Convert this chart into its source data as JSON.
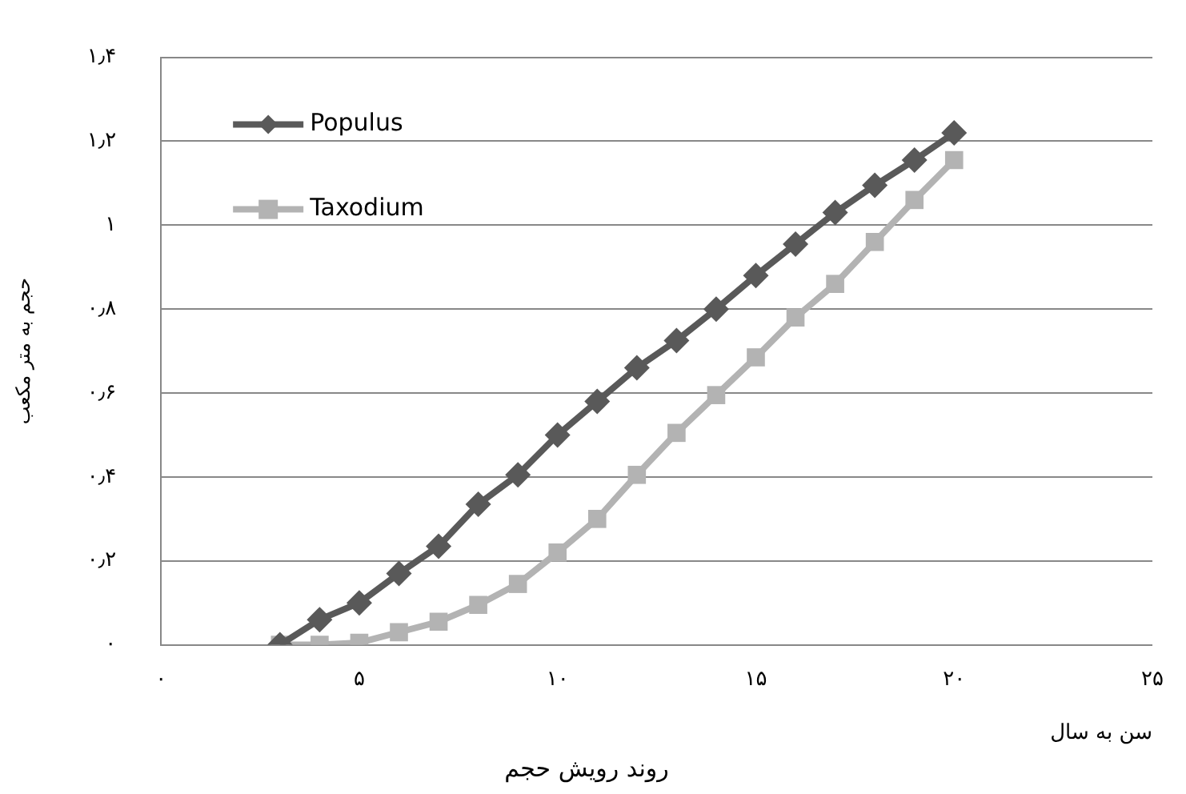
{
  "chart_data": {
    "type": "line",
    "title": "روند رویش حجم",
    "xlabel": "سن به سال",
    "ylabel": "حجم به متر مکعب",
    "x": [
      3,
      4,
      5,
      6,
      7,
      8,
      9,
      10,
      11,
      12,
      13,
      14,
      15,
      16,
      17,
      18,
      19,
      20
    ],
    "series": [
      {
        "name": "Populus",
        "color": "#595959",
        "marker": "diamond",
        "values": [
          0,
          0.06,
          0.1,
          0.17,
          0.235,
          0.335,
          0.405,
          0.5,
          0.58,
          0.66,
          0.725,
          0.8,
          0.88,
          0.955,
          1.03,
          1.095,
          1.155,
          1.22
        ]
      },
      {
        "name": "Taxodium",
        "color": "#b3b3b3",
        "marker": "square",
        "values": [
          0,
          0,
          0.005,
          0.03,
          0.055,
          0.095,
          0.145,
          0.22,
          0.3,
          0.405,
          0.505,
          0.595,
          0.685,
          0.78,
          0.86,
          0.96,
          1.06,
          1.155
        ]
      }
    ],
    "xlim": [
      0,
      25
    ],
    "xticks": [
      {
        "value": 0,
        "label": "٠"
      },
      {
        "value": 5,
        "label": "۵"
      },
      {
        "value": 10,
        "label": "١٠"
      },
      {
        "value": 15,
        "label": "١۵"
      },
      {
        "value": 20,
        "label": "٢٠"
      },
      {
        "value": 25,
        "label": "٢۵"
      }
    ],
    "ylim": [
      0,
      1.4
    ],
    "yticks": [
      {
        "value": 0,
        "label": "٠"
      },
      {
        "value": 0.2,
        "label": "٠٫٢"
      },
      {
        "value": 0.4,
        "label": "٠٫۴"
      },
      {
        "value": 0.6,
        "label": "٠٫۶"
      },
      {
        "value": 0.8,
        "label": "٠٫٨"
      },
      {
        "value": 1,
        "label": "١"
      },
      {
        "value": 1.2,
        "label": "١٫٢"
      },
      {
        "value": 1.4,
        "label": "١٫۴"
      }
    ],
    "grid": "y",
    "legend": "top left",
    "line_style": "solid"
  }
}
